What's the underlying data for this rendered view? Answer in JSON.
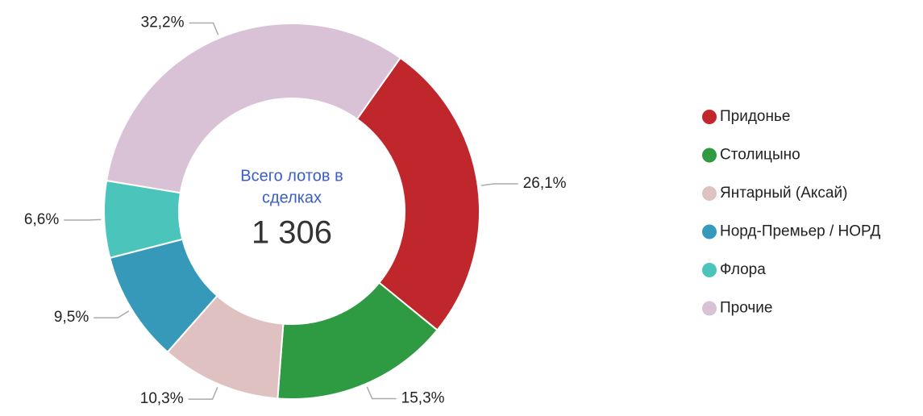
{
  "chart_data": {
    "type": "donut",
    "categories": [
      "Придонье",
      "Столицыно",
      "Янтарный (Аксай)",
      "Норд-Премьер / НОРД",
      "Флора",
      "Прочие"
    ],
    "values": [
      26.1,
      15.3,
      10.3,
      9.5,
      6.6,
      32.2
    ],
    "value_labels": [
      "26,1%",
      "15,3%",
      "10,3%",
      "9,5%",
      "6,6%",
      "32,2%"
    ],
    "colors": [
      "#c0272d",
      "#2e9a41",
      "#e0c1c1",
      "#3799b9",
      "#4bc5bc",
      "#d9c1d6"
    ],
    "center_text": [
      "Всего лотов в",
      "сделках"
    ],
    "total": {
      "value": 1306,
      "label": "1 306"
    },
    "legend": "right"
  }
}
